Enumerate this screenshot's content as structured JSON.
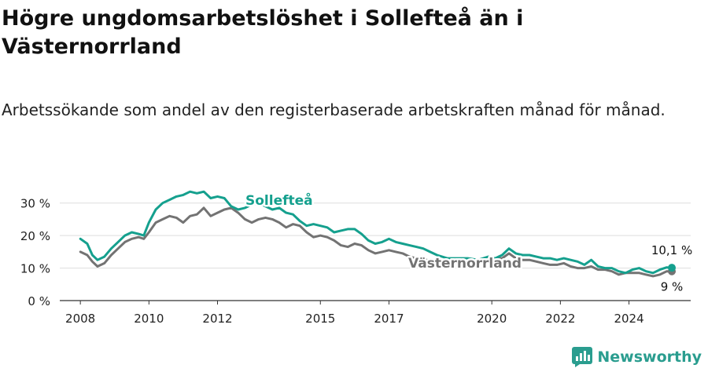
{
  "title": "Högre ungdomsarbetslöshet i Sollefteå än i Västernorrland",
  "subtitle": "Arbetssökande som andel av den registerbaserade arbetskraften månad för månad.",
  "brand": {
    "name": "Newsworthy",
    "icon": "newsworthy-logo-icon",
    "color": "#2a9d8f"
  },
  "chart_data": {
    "type": "line",
    "xlim": [
      2007.4,
      2025.8
    ],
    "ylim": [
      0,
      35
    ],
    "yticks": [
      0,
      10,
      20,
      30
    ],
    "ytick_labels": [
      "0 %",
      "10 %",
      "20 %",
      "30 %"
    ],
    "xticks": [
      2008,
      2010,
      2012,
      2015,
      2017,
      2020,
      2022,
      2024
    ],
    "xtick_labels": [
      "2008",
      "2010",
      "2012",
      "2015",
      "2017",
      "2020",
      "2022",
      "2024"
    ],
    "grid": true,
    "series": [
      {
        "name": "Sollefteå",
        "color": "#15a08e",
        "end_label": "10,1 %",
        "points": [
          [
            2008.0,
            19
          ],
          [
            2008.2,
            17.5
          ],
          [
            2008.35,
            14
          ],
          [
            2008.5,
            12.5
          ],
          [
            2008.7,
            13.5
          ],
          [
            2008.9,
            16
          ],
          [
            2009.1,
            18
          ],
          [
            2009.3,
            20
          ],
          [
            2009.5,
            21
          ],
          [
            2009.7,
            20.5
          ],
          [
            2009.85,
            20
          ],
          [
            2010.0,
            24
          ],
          [
            2010.2,
            28
          ],
          [
            2010.4,
            30
          ],
          [
            2010.6,
            31
          ],
          [
            2010.8,
            32
          ],
          [
            2011.0,
            32.5
          ],
          [
            2011.2,
            33.5
          ],
          [
            2011.4,
            33
          ],
          [
            2011.6,
            33.5
          ],
          [
            2011.8,
            31.5
          ],
          [
            2012.0,
            32
          ],
          [
            2012.2,
            31.5
          ],
          [
            2012.4,
            29
          ],
          [
            2012.6,
            28
          ],
          [
            2012.8,
            28.5
          ],
          [
            2013.0,
            29.5
          ],
          [
            2013.2,
            30
          ],
          [
            2013.4,
            29
          ],
          [
            2013.6,
            28
          ],
          [
            2013.8,
            28.5
          ],
          [
            2014.0,
            27
          ],
          [
            2014.2,
            26.5
          ],
          [
            2014.4,
            24.5
          ],
          [
            2014.6,
            23
          ],
          [
            2014.8,
            23.5
          ],
          [
            2015.0,
            23
          ],
          [
            2015.2,
            22.5
          ],
          [
            2015.4,
            21
          ],
          [
            2015.6,
            21.5
          ],
          [
            2015.8,
            22
          ],
          [
            2016.0,
            22
          ],
          [
            2016.2,
            20.5
          ],
          [
            2016.4,
            18.5
          ],
          [
            2016.6,
            17.5
          ],
          [
            2016.8,
            18
          ],
          [
            2017.0,
            19
          ],
          [
            2017.2,
            18
          ],
          [
            2017.4,
            17.5
          ],
          [
            2017.6,
            17
          ],
          [
            2017.8,
            16.5
          ],
          [
            2018.0,
            16
          ],
          [
            2018.2,
            15
          ],
          [
            2018.4,
            14
          ],
          [
            2018.7,
            13
          ],
          [
            2019.0,
            13
          ],
          [
            2019.3,
            13
          ],
          [
            2019.6,
            12.5
          ],
          [
            2019.9,
            13.5
          ],
          [
            2020.1,
            13
          ],
          [
            2020.3,
            14
          ],
          [
            2020.5,
            16
          ],
          [
            2020.7,
            14.5
          ],
          [
            2020.9,
            14
          ],
          [
            2021.1,
            14
          ],
          [
            2021.3,
            13.5
          ],
          [
            2021.5,
            13
          ],
          [
            2021.7,
            13
          ],
          [
            2021.9,
            12.5
          ],
          [
            2022.1,
            13
          ],
          [
            2022.3,
            12.5
          ],
          [
            2022.5,
            12
          ],
          [
            2022.7,
            11
          ],
          [
            2022.9,
            12.5
          ],
          [
            2023.1,
            10.5
          ],
          [
            2023.3,
            10
          ],
          [
            2023.5,
            10
          ],
          [
            2023.7,
            9
          ],
          [
            2023.9,
            8.5
          ],
          [
            2024.1,
            9.5
          ],
          [
            2024.3,
            10
          ],
          [
            2024.5,
            9
          ],
          [
            2024.7,
            8.5
          ],
          [
            2024.9,
            9.5
          ],
          [
            2025.1,
            10.2
          ],
          [
            2025.25,
            10.1
          ]
        ]
      },
      {
        "name": "Västernorrland",
        "color": "#737373",
        "end_label": "9 %",
        "points": [
          [
            2008.0,
            15
          ],
          [
            2008.2,
            14
          ],
          [
            2008.35,
            12
          ],
          [
            2008.5,
            10.5
          ],
          [
            2008.7,
            11.5
          ],
          [
            2008.9,
            14
          ],
          [
            2009.1,
            16
          ],
          [
            2009.3,
            18
          ],
          [
            2009.5,
            19
          ],
          [
            2009.7,
            19.5
          ],
          [
            2009.85,
            19
          ],
          [
            2010.0,
            21
          ],
          [
            2010.2,
            24
          ],
          [
            2010.4,
            25
          ],
          [
            2010.6,
            26
          ],
          [
            2010.8,
            25.5
          ],
          [
            2011.0,
            24
          ],
          [
            2011.2,
            26
          ],
          [
            2011.4,
            26.5
          ],
          [
            2011.6,
            28.5
          ],
          [
            2011.8,
            26
          ],
          [
            2012.0,
            27
          ],
          [
            2012.2,
            28
          ],
          [
            2012.4,
            28.5
          ],
          [
            2012.6,
            27
          ],
          [
            2012.8,
            25
          ],
          [
            2013.0,
            24
          ],
          [
            2013.2,
            25
          ],
          [
            2013.4,
            25.5
          ],
          [
            2013.6,
            25
          ],
          [
            2013.8,
            24
          ],
          [
            2014.0,
            22.5
          ],
          [
            2014.2,
            23.5
          ],
          [
            2014.4,
            23
          ],
          [
            2014.6,
            21
          ],
          [
            2014.8,
            19.5
          ],
          [
            2015.0,
            20
          ],
          [
            2015.2,
            19.5
          ],
          [
            2015.4,
            18.5
          ],
          [
            2015.6,
            17
          ],
          [
            2015.8,
            16.5
          ],
          [
            2016.0,
            17.5
          ],
          [
            2016.2,
            17
          ],
          [
            2016.4,
            15.5
          ],
          [
            2016.6,
            14.5
          ],
          [
            2016.8,
            15
          ],
          [
            2017.0,
            15.5
          ],
          [
            2017.2,
            15
          ],
          [
            2017.4,
            14.5
          ],
          [
            2017.6,
            13.5
          ],
          [
            2017.8,
            13
          ],
          [
            2018.0,
            13
          ],
          [
            2018.2,
            12
          ],
          [
            2018.4,
            12.5
          ],
          [
            2018.7,
            11.5
          ],
          [
            2019.0,
            12
          ],
          [
            2019.3,
            12
          ],
          [
            2019.6,
            11.5
          ],
          [
            2019.9,
            12.5
          ],
          [
            2020.1,
            13
          ],
          [
            2020.3,
            13
          ],
          [
            2020.5,
            14.5
          ],
          [
            2020.7,
            13
          ],
          [
            2020.9,
            12.5
          ],
          [
            2021.1,
            12.5
          ],
          [
            2021.3,
            12
          ],
          [
            2021.5,
            11.5
          ],
          [
            2021.7,
            11
          ],
          [
            2021.9,
            11
          ],
          [
            2022.1,
            11.5
          ],
          [
            2022.3,
            10.5
          ],
          [
            2022.5,
            10
          ],
          [
            2022.7,
            10
          ],
          [
            2022.9,
            10.5
          ],
          [
            2023.1,
            9.5
          ],
          [
            2023.3,
            9.5
          ],
          [
            2023.5,
            9
          ],
          [
            2023.7,
            8
          ],
          [
            2023.9,
            8.5
          ],
          [
            2024.1,
            8.5
          ],
          [
            2024.3,
            8.5
          ],
          [
            2024.5,
            8
          ],
          [
            2024.7,
            7.5
          ],
          [
            2024.9,
            8
          ],
          [
            2025.1,
            9
          ],
          [
            2025.25,
            9
          ]
        ]
      }
    ]
  }
}
